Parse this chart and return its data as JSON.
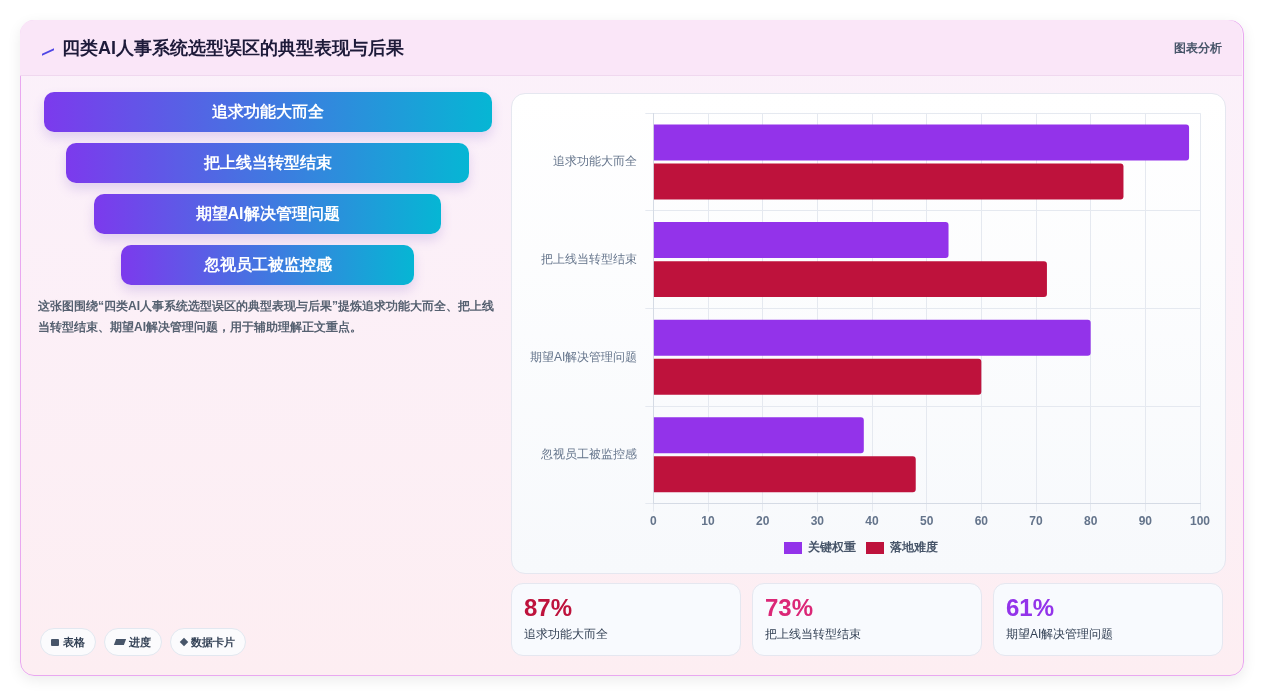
{
  "chart_data": [
    {
      "type": "other",
      "title": "四类AI人事系统选型误区的典型表现与后果",
      "annotations": [
        "图表分析"
      ]
    },
    {
      "type": "other",
      "annotations": [
        "追求功能大而全",
        "把上线当转型结束",
        "期望AI解决管理问题",
        "忽视员工被监控感"
      ]
    },
    {
      "type": "other",
      "annotations": [
        "这张图围绕“四类AI人事系统选型误区的典型表现与后果”提炼追求功能大而全、把上线当转型结束、期望AI解决管理问题，用于辅助理解正文重点。"
      ]
    },
    {
      "type": "other",
      "annotations": [
        "表格",
        "进度",
        "数据卡片"
      ]
    },
    {
      "type": "bar",
      "orientation": "horizontal",
      "categories": [
        "追求功能大而全",
        "把上线当转型结束",
        "期望AI解决管理问题",
        "忽视员工被监控感"
      ],
      "series": [
        {
          "name": "关键权重",
          "color": "#9333ea",
          "values": [
            98,
            54,
            80,
            38.5
          ]
        },
        {
          "name": "落地难度",
          "color": "#be123c",
          "values": [
            86,
            72,
            60,
            48
          ]
        }
      ],
      "xlim": [
        0,
        100
      ],
      "xticks": [
        0,
        10,
        20,
        30,
        40,
        50,
        60,
        70,
        80,
        90,
        100
      ],
      "grid": true,
      "legend": "bottom"
    },
    {
      "type": "other",
      "title": "87%",
      "color": "#be123c",
      "annotations": [
        "追求功能大而全"
      ]
    },
    {
      "type": "other",
      "title": "73%",
      "color": "#db2777",
      "annotations": [
        "把上线当转型结束"
      ]
    },
    {
      "type": "other",
      "title": "61%",
      "color": "#9333ea",
      "annotations": [
        "期望AI解决管理问题"
      ]
    }
  ]
}
